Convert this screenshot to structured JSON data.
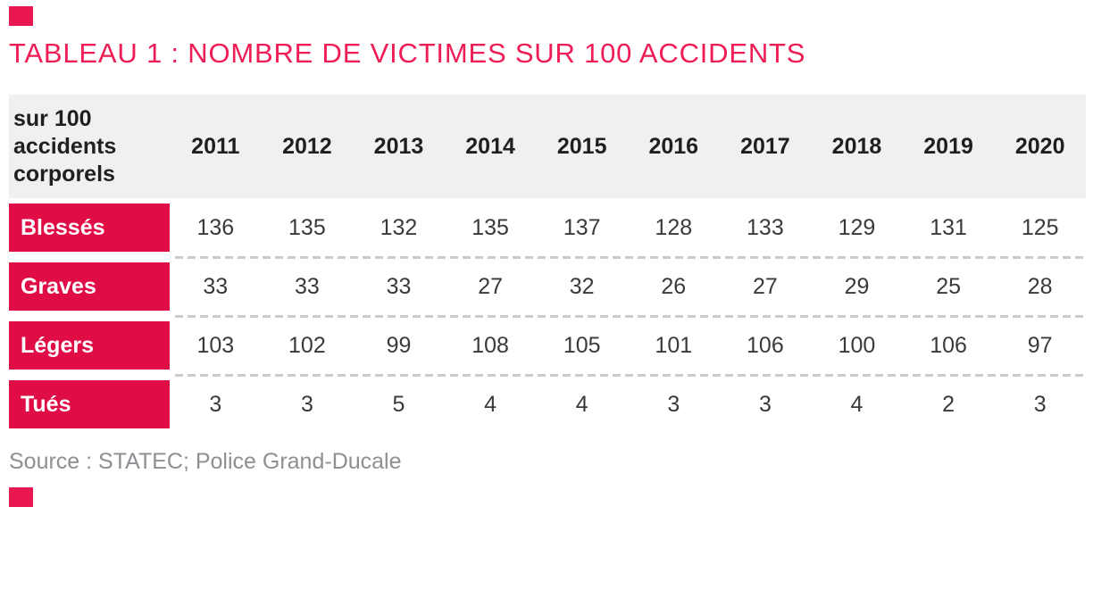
{
  "title": "TABLEAU 1 : NOMBRE DE VICTIMES SUR 100 ACCIDENTS",
  "source": "Source : STATEC; Police Grand-Ducale",
  "colors": {
    "accent_red": "#df0c46",
    "title_red": "#ee1d55",
    "corner_square_red": "#e8174f",
    "header_bg": "#f0f0f0",
    "header_text": "#1f1f1f",
    "value_text": "#3a3a3a",
    "source_text": "#8d8f93",
    "dashed_separator": "#cbcbcb"
  },
  "chart_data": {
    "type": "table",
    "title": "TABLEAU 1 : NOMBRE DE VICTIMES SUR 100 ACCIDENTS",
    "corner_header": "sur 100 accidents corporels",
    "categories": [
      "2011",
      "2012",
      "2013",
      "2014",
      "2015",
      "2016",
      "2017",
      "2018",
      "2019",
      "2020"
    ],
    "series": [
      {
        "name": "Blessés",
        "values": [
          136,
          135,
          132,
          135,
          137,
          128,
          133,
          129,
          131,
          125
        ]
      },
      {
        "name": "Graves",
        "values": [
          33,
          33,
          33,
          27,
          32,
          26,
          27,
          29,
          25,
          28
        ]
      },
      {
        "name": "Légers",
        "values": [
          103,
          102,
          99,
          108,
          105,
          101,
          106,
          100,
          106,
          97
        ]
      },
      {
        "name": "Tués",
        "values": [
          3,
          3,
          5,
          4,
          4,
          3,
          3,
          4,
          2,
          3
        ]
      }
    ],
    "source_note": "Source : STATEC; Police Grand-Ducale"
  }
}
